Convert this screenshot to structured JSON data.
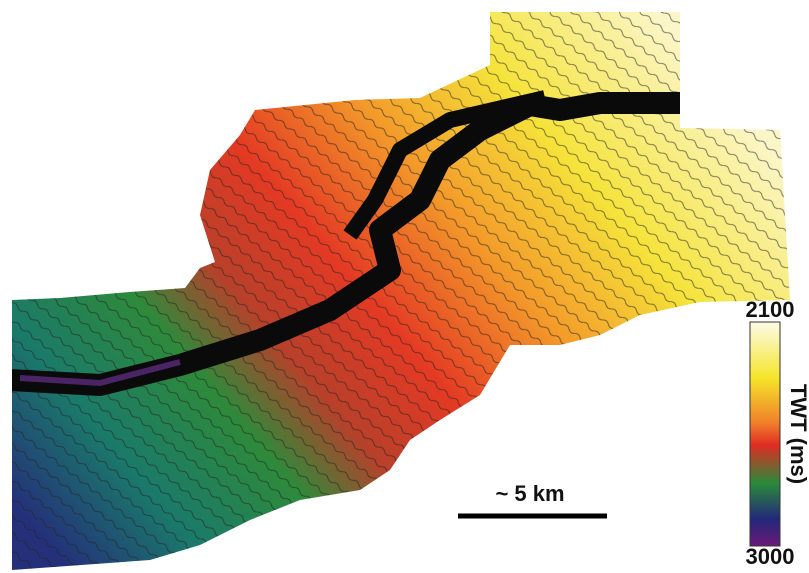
{
  "colorbar": {
    "max_label": "2100",
    "title": "TWT (ms)",
    "min_label": "3000"
  },
  "scale_bar": {
    "label": "~ 5 km"
  }
}
